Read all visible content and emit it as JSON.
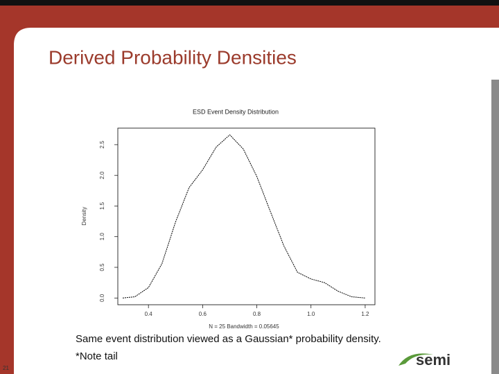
{
  "slide": {
    "title": "Derived Probability Densities",
    "caption": "Same event distribution viewed as a Gaussian* probability density.",
    "note": "*Note tail",
    "page_number": "21",
    "logo": "semi"
  },
  "chart_data": {
    "type": "line",
    "title": "ESD Event Density Distribution",
    "x_label": "N = 25   Bandwidth = 0.05645",
    "y_label": "Density",
    "x": [
      0.305,
      0.35,
      0.4,
      0.45,
      0.5,
      0.55,
      0.6,
      0.65,
      0.7,
      0.75,
      0.8,
      0.85,
      0.9,
      0.95,
      1.0,
      1.05,
      1.1,
      1.15,
      1.2
    ],
    "values": [
      0.0,
      0.02,
      0.17,
      0.56,
      1.24,
      1.8,
      2.09,
      2.46,
      2.66,
      2.43,
      1.98,
      1.41,
      0.85,
      0.42,
      0.31,
      0.25,
      0.11,
      0.02,
      0.0
    ],
    "color": "#000000",
    "xlim": [
      0.287,
      1.236
    ],
    "ylim": [
      -0.11,
      2.77
    ],
    "xticks": [
      0.4,
      0.6,
      0.8,
      {
        "value": 1,
        "label": "1.0"
      },
      1.2
    ],
    "yticks": [
      {
        "value": 0,
        "label": "0.0"
      },
      0.5,
      {
        "value": 1,
        "label": "1.0"
      },
      1.5,
      {
        "value": 2,
        "label": "2.0"
      },
      2.5
    ]
  }
}
